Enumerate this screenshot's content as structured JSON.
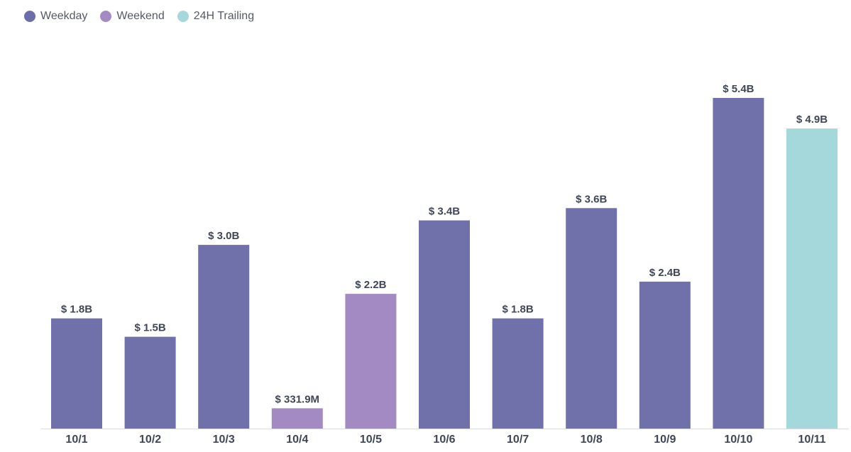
{
  "chart_data": {
    "type": "bar",
    "categories": [
      "10/1",
      "10/2",
      "10/3",
      "10/4",
      "10/5",
      "10/6",
      "10/7",
      "10/8",
      "10/9",
      "10/10",
      "10/11"
    ],
    "values": [
      1.8,
      1.5,
      3.0,
      0.3319,
      2.2,
      3.4,
      1.8,
      3.6,
      2.4,
      5.4,
      4.9
    ],
    "value_labels": [
      "$ 1.8B",
      "$ 1.5B",
      "$ 3.0B",
      "$ 331.9M",
      "$ 2.2B",
      "$ 3.4B",
      "$ 1.8B",
      "$ 3.6B",
      "$ 2.4B",
      "$ 5.4B",
      "$ 4.9B"
    ],
    "groups": [
      "Weekday",
      "Weekday",
      "Weekday",
      "Weekend",
      "Weekend",
      "Weekday",
      "Weekday",
      "Weekday",
      "Weekday",
      "Weekday",
      "24H Trailing"
    ],
    "unit": "billions USD",
    "ylim": [
      0,
      5.4
    ],
    "grid": false,
    "legend_position": "top-left",
    "legend": [
      {
        "name": "Weekday",
        "color": "#7070aa"
      },
      {
        "name": "Weekend",
        "color": "#a48ac3"
      },
      {
        "name": "24H Trailing",
        "color": "#a5d8da"
      }
    ]
  }
}
